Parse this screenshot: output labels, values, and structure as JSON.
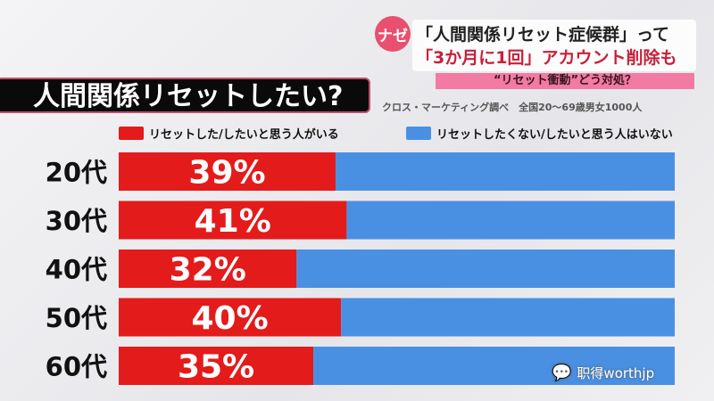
{
  "header": {
    "badge": "ナゼ",
    "line1": "「人間関係リセット症候群」って",
    "line2": "「3か月に1回」アカウント削除も",
    "subline": "“リセット衝動”どう対処？"
  },
  "title": "人間関係リセットしたい?",
  "source": "クロス・マーケティング調べ　全国20〜69歳男女1000人",
  "watermark": "职得worthjp",
  "chart_data": {
    "type": "bar",
    "orientation": "horizontal",
    "stacked": true,
    "categories": [
      "20代",
      "30代",
      "40代",
      "50代",
      "60代"
    ],
    "series": [
      {
        "name": "リセットした/したいと思う人がいる",
        "values": [
          39,
          41,
          32,
          40,
          35
        ],
        "color": "#e41b1b"
      },
      {
        "name": "リセットしたくない/したいと思う人はいない",
        "values": [
          61,
          59,
          68,
          60,
          65
        ],
        "color": "#4a90e2"
      }
    ],
    "data_labels": [
      "39%",
      "41%",
      "32%",
      "40%",
      "35%"
    ],
    "xlim": [
      0,
      100
    ],
    "legend": "top"
  }
}
